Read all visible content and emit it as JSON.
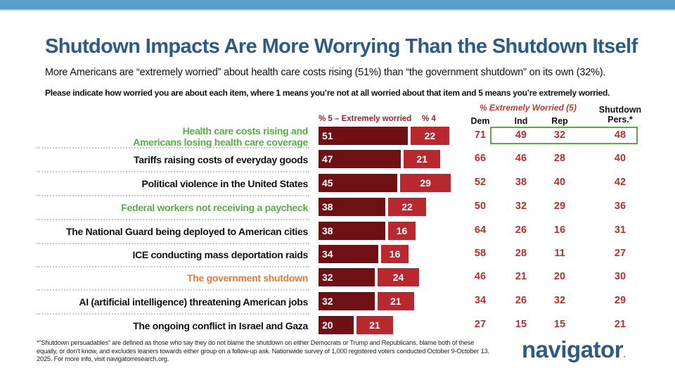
{
  "header": {
    "title": "Shutdown Impacts Are More Worrying Than the Shutdown Itself",
    "subtitle": "More Americans are “extremely worried” about health care costs rising (51%) than “the government shutdown” on its own (32%).",
    "question": "Please indicate how worried you are about each item, where 1 means you’re not at all worried about that item and 5 means you’re extremely worried."
  },
  "chart_data": {
    "type": "bar",
    "orientation": "horizontal",
    "stacked": true,
    "categories": [
      {
        "lines": [
          "Health care costs rising and",
          "Americans losing health care coverage"
        ],
        "color": "#5aaa4a"
      },
      {
        "lines": [
          "Tariffs raising costs of everyday goods"
        ],
        "color": "#111111"
      },
      {
        "lines": [
          "Political violence in the United States"
        ],
        "color": "#111111"
      },
      {
        "lines": [
          "Federal workers not receiving a paycheck"
        ],
        "color": "#5aaa4a"
      },
      {
        "lines": [
          "The National Guard being deployed to American cities"
        ],
        "color": "#111111"
      },
      {
        "lines": [
          "ICE conducting mass deportation raids"
        ],
        "color": "#111111"
      },
      {
        "lines": [
          "The government shutdown"
        ],
        "color": "#e07b39"
      },
      {
        "lines": [
          "AI (artificial intelligence) threatening American jobs"
        ],
        "color": "#111111"
      },
      {
        "lines": [
          "The ongoing conflict in Israel and Gaza"
        ],
        "color": "#111111"
      }
    ],
    "series": [
      {
        "name": "% 5 – Extremely worried",
        "color": "#6e1014",
        "values": [
          51,
          47,
          45,
          38,
          38,
          34,
          32,
          32,
          20
        ]
      },
      {
        "name": "% 4",
        "color": "#b8282e",
        "values": [
          22,
          21,
          29,
          22,
          16,
          16,
          24,
          21,
          21
        ]
      }
    ]
  },
  "table": {
    "group_header": "% Extremely Worried (5)",
    "columns": [
      "Dem",
      "Ind",
      "Rep",
      "Shutdown Pers.*"
    ],
    "column_lines": [
      [
        "Dem"
      ],
      [
        "Ind"
      ],
      [
        "Rep"
      ],
      [
        "Shutdown",
        "Pers.*"
      ]
    ],
    "rows": [
      [
        71,
        49,
        32,
        48
      ],
      [
        66,
        46,
        28,
        40
      ],
      [
        52,
        38,
        40,
        42
      ],
      [
        50,
        32,
        29,
        36
      ],
      [
        64,
        26,
        16,
        31
      ],
      [
        58,
        28,
        11,
        27
      ],
      [
        46,
        21,
        20,
        30
      ],
      [
        34,
        26,
        32,
        29
      ],
      [
        27,
        15,
        15,
        21
      ]
    ],
    "highlight_color": "#5aaa4a"
  },
  "footnote": "*“Shutdown persuadables” are defined as those who say they do not blame the shutdown on either Democrats or Trump and Republicans, blame both of these equally, or don’t know, and excludes leaners towards either group on a follow-up ask. Nationwide survey of 1,000 registered voters conducted October 9-October 13, 2025. For more info, visit navigatorresearch.org.",
  "logo": {
    "text": "navigator",
    "mark": "."
  }
}
